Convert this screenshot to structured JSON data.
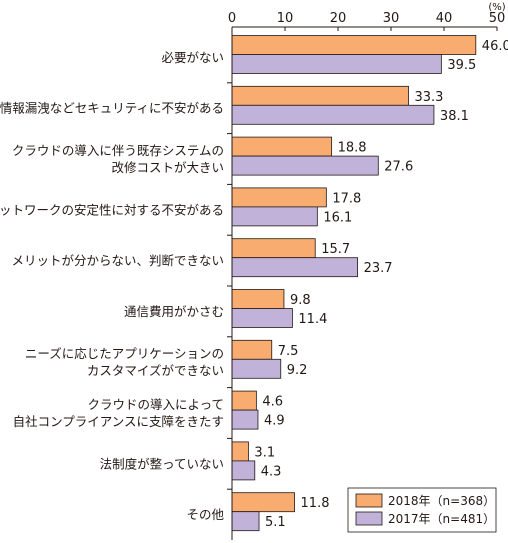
{
  "chart_data": {
    "type": "bar",
    "orientation": "horizontal",
    "unit_label": "(%)",
    "xlim": [
      0,
      50
    ],
    "xticks": [
      0,
      10,
      20,
      30,
      40,
      50
    ],
    "categories": [
      [
        "必要がない"
      ],
      [
        "情報漏洩などセキュリティに不安がある"
      ],
      [
        "クラウドの導入に伴う既存システムの",
        "改修コストが大きい"
      ],
      [
        "ネットワークの安定性に対する不安がある"
      ],
      [
        "メリットが分からない、判断できない"
      ],
      [
        "通信費用がかさむ"
      ],
      [
        "ニーズに応じたアプリケーションの",
        "カスタマイズができない"
      ],
      [
        "クラウドの導入によって",
        "自社コンプライアンスに支障をきたす"
      ],
      [
        "法制度が整っていない"
      ],
      [
        "その他"
      ]
    ],
    "series": [
      {
        "name": "2018年（n=368）",
        "color": "#f8ac6f",
        "values": [
          46.0,
          33.3,
          18.8,
          17.8,
          15.7,
          9.8,
          7.5,
          4.6,
          3.1,
          11.8
        ]
      },
      {
        "name": "2017年（n=481）",
        "color": "#c1b2d9",
        "values": [
          39.5,
          38.1,
          27.6,
          16.1,
          23.7,
          11.4,
          9.2,
          4.9,
          4.3,
          5.1
        ]
      }
    ],
    "legend_position": "bottom-right",
    "grid": false
  }
}
